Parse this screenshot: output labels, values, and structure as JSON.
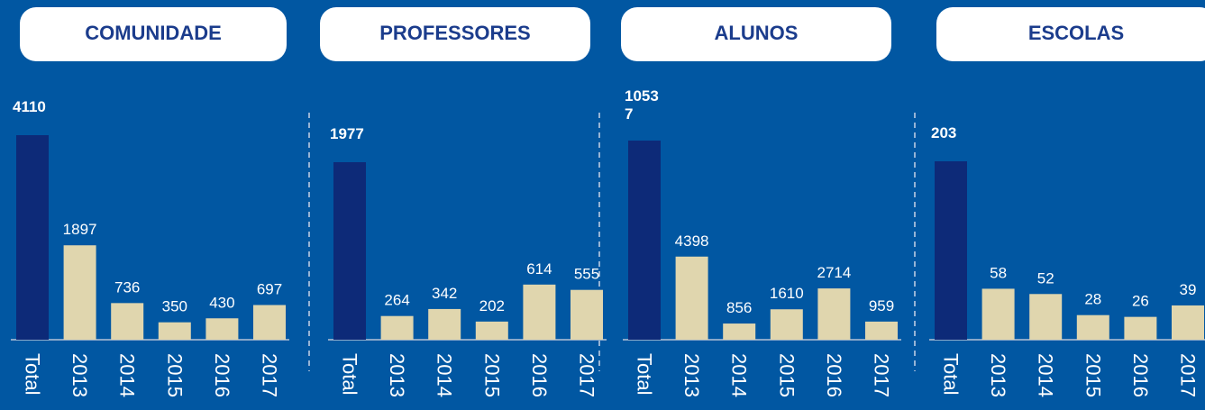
{
  "chart_data": [
    {
      "type": "bar",
      "title": "COMUNIDADE",
      "categories": [
        "Total",
        "2013",
        "2014",
        "2015",
        "2016",
        "2017"
      ],
      "values": [
        4110,
        1897,
        736,
        350,
        430,
        697
      ],
      "colors": [
        "#0d2a78",
        "#e0d6ae",
        "#e0d6ae",
        "#e0d6ae",
        "#e0d6ae",
        "#e0d6ae"
      ]
    },
    {
      "type": "bar",
      "title": "PROFESSORES",
      "categories": [
        "Total",
        "2013",
        "2014",
        "2015",
        "2016",
        "2017"
      ],
      "values": [
        1977,
        264,
        342,
        202,
        614,
        555
      ],
      "colors": [
        "#0d2a78",
        "#e0d6ae",
        "#e0d6ae",
        "#e0d6ae",
        "#e0d6ae",
        "#e0d6ae"
      ]
    },
    {
      "type": "bar",
      "title": "ALUNOS",
      "categories": [
        "Total",
        "2013",
        "2014",
        "2015",
        "2016",
        "2017"
      ],
      "values": [
        10537,
        4398,
        856,
        1610,
        2714,
        959
      ],
      "colors": [
        "#0d2a78",
        "#e0d6ae",
        "#e0d6ae",
        "#e0d6ae",
        "#e0d6ae",
        "#e0d6ae"
      ]
    },
    {
      "type": "bar",
      "title": "ESCOLAS",
      "categories": [
        "Total",
        "2013",
        "2014",
        "2015",
        "2016",
        "2017"
      ],
      "values": [
        203,
        58,
        52,
        28,
        26,
        39
      ],
      "colors": [
        "#0d2a78",
        "#e0d6ae",
        "#e0d6ae",
        "#e0d6ae",
        "#e0d6ae",
        "#e0d6ae"
      ]
    }
  ]
}
